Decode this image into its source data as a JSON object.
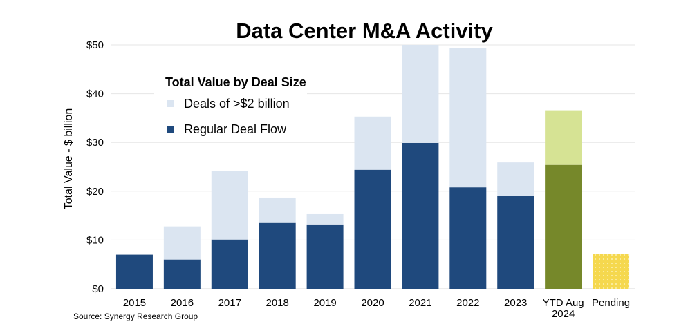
{
  "chart_data": {
    "type": "bar",
    "stacked": true,
    "title": "Data Center M&A Activity",
    "ylabel": "Total Value - $ billion",
    "ylim": [
      0,
      50
    ],
    "yticks": [
      "$0",
      "$10",
      "$20",
      "$30",
      "$40",
      "$50"
    ],
    "ytick_values": [
      0,
      10,
      20,
      30,
      40,
      50
    ],
    "grid": true,
    "categories": [
      "2015",
      "2016",
      "2017",
      "2018",
      "2019",
      "2020",
      "2021",
      "2022",
      "2023",
      "YTD Aug\n2024",
      "Pending"
    ],
    "legend": {
      "title": "Total Value by Deal Size",
      "position": "top-left"
    },
    "series": [
      {
        "name": "Regular Deal Flow",
        "color": "#1f497d",
        "values": [
          7.0,
          6.0,
          10.1,
          13.5,
          13.2,
          24.4,
          29.9,
          20.8,
          19.0,
          25.4,
          7.1
        ]
      },
      {
        "name": "Deals of >$2 billion",
        "color": "#dbe5f1",
        "values": [
          0,
          6.8,
          14.0,
          5.2,
          2.1,
          10.9,
          20.1,
          28.5,
          6.9,
          11.2,
          0
        ]
      }
    ],
    "highlight_colors": {
      "ytd_regular": "#76882a",
      "ytd_large": "#d6e394",
      "pending": "#f5d84e"
    },
    "source": "Source: Synergy Research Group"
  }
}
